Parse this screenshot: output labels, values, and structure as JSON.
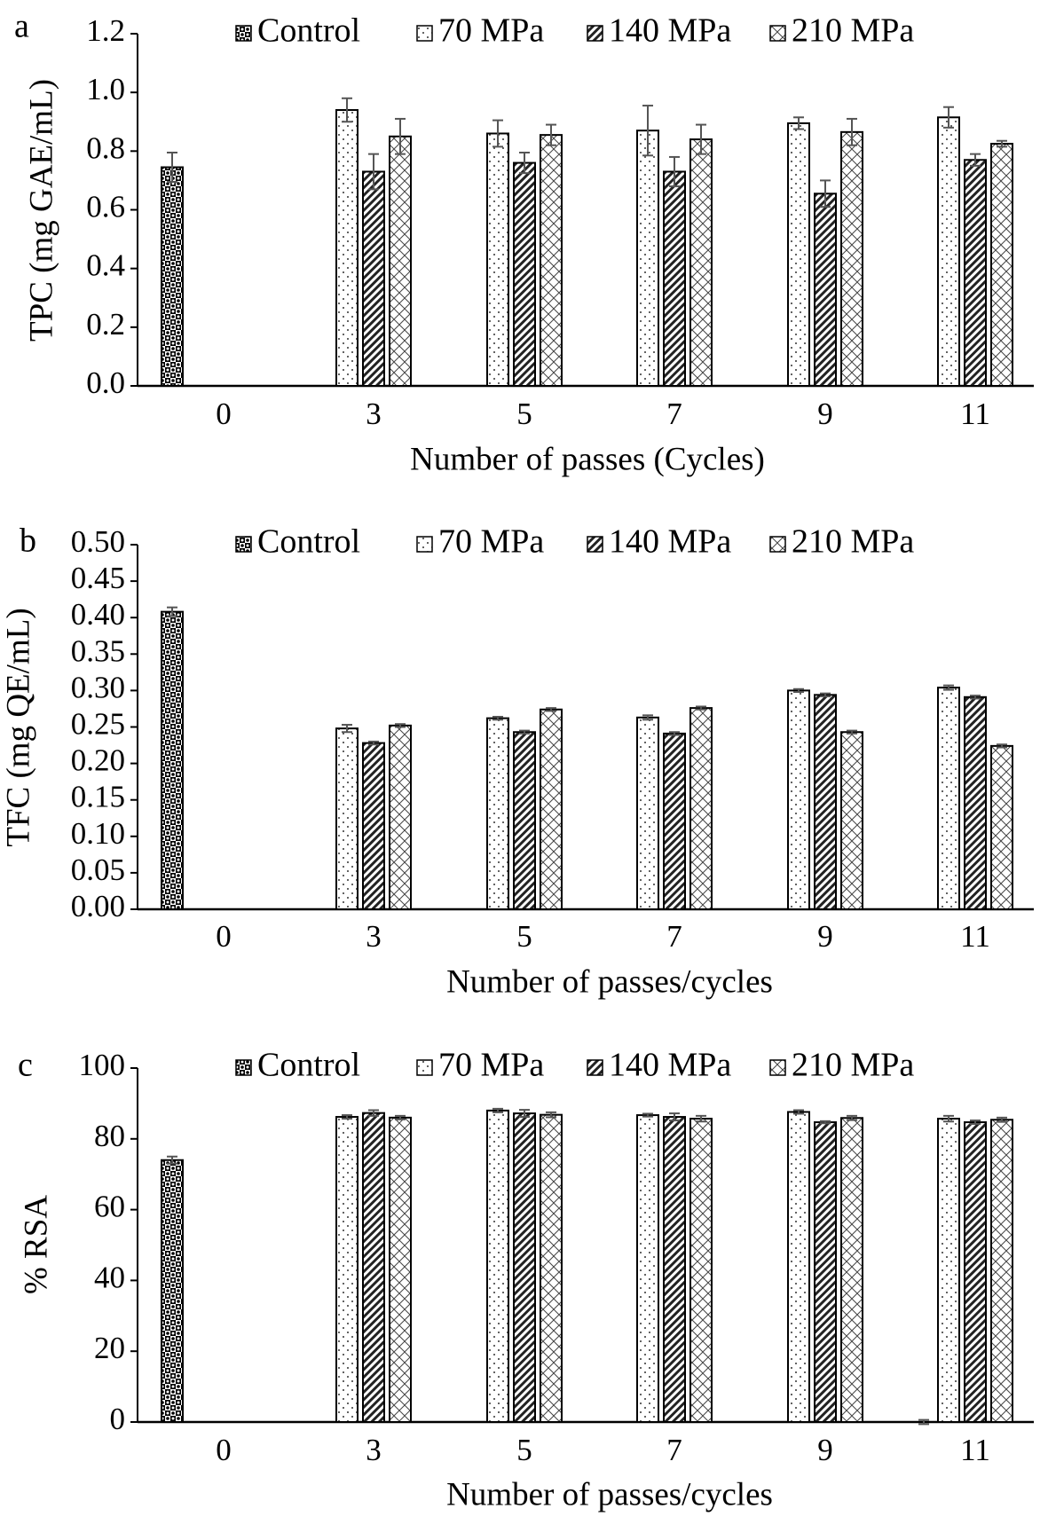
{
  "chart_data": [
    {
      "type": "bar",
      "panel_label": "a",
      "xlabel": "Number of passes (Cycles)",
      "ylabel": "TPC (mg GAE/mL)",
      "categories": [
        "0",
        "3",
        "5",
        "7",
        "9",
        "11"
      ],
      "ylim": [
        0,
        1.2
      ],
      "yticks": [
        "0.0",
        "0.2",
        "0.4",
        "0.6",
        "0.8",
        "1.0",
        "1.2"
      ],
      "grid": false,
      "legend_position": "top",
      "series": [
        {
          "name": "Control",
          "values": [
            0.745,
            null,
            null,
            null,
            null,
            null
          ],
          "errors": [
            0.05,
            null,
            null,
            null,
            null,
            null
          ]
        },
        {
          "name": "70 MPa",
          "values": [
            null,
            0.94,
            0.86,
            0.87,
            0.895,
            0.915
          ],
          "errors": [
            null,
            0.04,
            0.045,
            0.085,
            0.02,
            0.035
          ]
        },
        {
          "name": "140 MPa",
          "values": [
            null,
            0.73,
            0.76,
            0.73,
            0.655,
            0.77
          ],
          "errors": [
            null,
            0.06,
            0.035,
            0.05,
            0.045,
            0.02
          ]
        },
        {
          "name": "210 MPa",
          "values": [
            null,
            0.85,
            0.855,
            0.84,
            0.865,
            0.825
          ],
          "errors": [
            null,
            0.06,
            0.035,
            0.05,
            0.045,
            0.01
          ]
        }
      ]
    },
    {
      "type": "bar",
      "panel_label": "b",
      "xlabel": "Number of passes/cycles",
      "ylabel": "TFC (mg QE/mL)",
      "categories": [
        "0",
        "3",
        "5",
        "7",
        "9",
        "11"
      ],
      "ylim": [
        0,
        0.5
      ],
      "yticks": [
        "0.00",
        "0.05",
        "0.10",
        "0.15",
        "0.20",
        "0.25",
        "0.30",
        "0.35",
        "0.40",
        "0.45",
        "0.50"
      ],
      "grid": false,
      "legend_position": "top",
      "series": [
        {
          "name": "Control",
          "values": [
            0.408,
            null,
            null,
            null,
            null,
            null
          ],
          "errors": [
            0.006,
            null,
            null,
            null,
            null,
            null
          ]
        },
        {
          "name": "70 MPa",
          "values": [
            null,
            0.248,
            0.262,
            0.263,
            0.3,
            0.304
          ],
          "errors": [
            null,
            0.005,
            0.002,
            0.003,
            0.002,
            0.003
          ]
        },
        {
          "name": "140 MPa",
          "values": [
            null,
            0.228,
            0.243,
            0.241,
            0.294,
            0.291
          ],
          "errors": [
            null,
            0.002,
            0.002,
            0.002,
            0.002,
            0.002
          ]
        },
        {
          "name": "210 MPa",
          "values": [
            null,
            0.252,
            0.274,
            0.276,
            0.243,
            0.224
          ],
          "errors": [
            null,
            0.002,
            0.002,
            0.002,
            0.002,
            0.002
          ]
        }
      ]
    },
    {
      "type": "bar",
      "panel_label": "c",
      "xlabel": "Number of passes/cycles",
      "ylabel": "% RSA",
      "categories": [
        "0",
        "3",
        "5",
        "7",
        "9",
        "11"
      ],
      "ylim": [
        0,
        100
      ],
      "yticks": [
        "0",
        "20",
        "40",
        "60",
        "80",
        "100"
      ],
      "grid": false,
      "legend_position": "top",
      "series": [
        {
          "name": "Control",
          "values": [
            74,
            null,
            null,
            null,
            null,
            0
          ],
          "errors": [
            1,
            null,
            null,
            null,
            null,
            0.6
          ]
        },
        {
          "name": "70 MPa",
          "values": [
            null,
            86.2,
            88,
            86.7,
            87.6,
            85.7
          ],
          "errors": [
            null,
            0.5,
            0.5,
            0.4,
            0.5,
            0.8
          ]
        },
        {
          "name": "140 MPa",
          "values": [
            null,
            87.3,
            87.2,
            86.2,
            84.7,
            84.7
          ],
          "errors": [
            null,
            0.8,
            1,
            1,
            0.3,
            0.5
          ]
        },
        {
          "name": "210 MPa",
          "values": [
            null,
            86,
            86.8,
            85.7,
            85.9,
            85.4
          ],
          "errors": [
            null,
            0.5,
            0.7,
            0.8,
            0.6,
            0.6
          ]
        }
      ]
    }
  ],
  "colors": {
    "ink": "#000000",
    "error_bar": "#555555",
    "background": "#ffffff"
  }
}
